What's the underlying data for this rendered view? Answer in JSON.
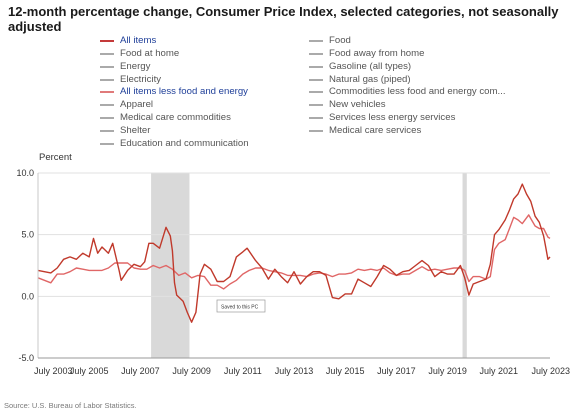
{
  "title": "12-month percentage change, Consumer Price Index, selected categories, not seasonally adjusted",
  "legend": {
    "left": [
      {
        "label": "All items",
        "active": true,
        "color": "#c43a3a"
      },
      {
        "label": "Food at home",
        "active": false,
        "color": "#aaaaaa"
      },
      {
        "label": "Energy",
        "active": false,
        "color": "#aaaaaa"
      },
      {
        "label": "Electricity",
        "active": false,
        "color": "#aaaaaa"
      },
      {
        "label": "All items less food and energy",
        "active": true,
        "color": "#e07a7a"
      },
      {
        "label": "Apparel",
        "active": false,
        "color": "#aaaaaa"
      },
      {
        "label": "Medical care commodities",
        "active": false,
        "color": "#aaaaaa"
      },
      {
        "label": "Shelter",
        "active": false,
        "color": "#aaaaaa"
      },
      {
        "label": "Education and communication",
        "active": false,
        "color": "#aaaaaa"
      }
    ],
    "right": [
      {
        "label": "Food",
        "active": false,
        "color": "#aaaaaa"
      },
      {
        "label": "Food away from home",
        "active": false,
        "color": "#aaaaaa"
      },
      {
        "label": "Gasoline (all types)",
        "active": false,
        "color": "#aaaaaa"
      },
      {
        "label": "Natural gas (piped)",
        "active": false,
        "color": "#aaaaaa"
      },
      {
        "label": "Commodities less food and energy com...",
        "active": false,
        "color": "#aaaaaa"
      },
      {
        "label": "New vehicles",
        "active": false,
        "color": "#aaaaaa"
      },
      {
        "label": "Services less energy services",
        "active": false,
        "color": "#aaaaaa"
      },
      {
        "label": "Medical care services",
        "active": false,
        "color": "#aaaaaa"
      }
    ]
  },
  "tooltip": "Saved to this PC",
  "source": "Source: U.S. Bureau of Labor Statistics.",
  "chart_data": {
    "type": "line",
    "ylabel": "Percent",
    "xlim": [
      "2003-07",
      "2023-07"
    ],
    "ylim": [
      -5.0,
      10.0
    ],
    "y_ticks": [
      "-5.0",
      "0.0",
      "5.0",
      "10.0"
    ],
    "y_tick_values": [
      -5,
      0,
      5,
      10
    ],
    "x_ticks": [
      "July 2003",
      "July 2005",
      "July 2007",
      "July 2009",
      "July 2011",
      "July 2013",
      "July 2015",
      "July 2017",
      "July 2019",
      "July 2021",
      "July 2023"
    ],
    "grid": {
      "horizontal": true,
      "vertical": false
    },
    "recession_shading": [
      {
        "start": "2007-12",
        "end": "2009-06"
      },
      {
        "start": "2020-02",
        "end": "2020-04"
      }
    ],
    "series": [
      {
        "name": "All items",
        "color": "#c0392b",
        "points": [
          [
            "2003-07",
            2.1
          ],
          [
            "2003-10",
            2.0
          ],
          [
            "2004-01",
            1.9
          ],
          [
            "2004-04",
            2.3
          ],
          [
            "2004-07",
            3.0
          ],
          [
            "2004-10",
            3.2
          ],
          [
            "2005-01",
            3.0
          ],
          [
            "2005-04",
            3.5
          ],
          [
            "2005-07",
            3.2
          ],
          [
            "2005-09",
            4.7
          ],
          [
            "2005-11",
            3.5
          ],
          [
            "2006-01",
            4.0
          ],
          [
            "2006-04",
            3.5
          ],
          [
            "2006-06",
            4.3
          ],
          [
            "2006-09",
            2.1
          ],
          [
            "2006-10",
            1.3
          ],
          [
            "2007-01",
            2.1
          ],
          [
            "2007-04",
            2.6
          ],
          [
            "2007-07",
            2.4
          ],
          [
            "2007-09",
            2.8
          ],
          [
            "2007-11",
            4.3
          ],
          [
            "2008-01",
            4.3
          ],
          [
            "2008-04",
            3.9
          ],
          [
            "2008-07",
            5.6
          ],
          [
            "2008-09",
            4.9
          ],
          [
            "2008-10",
            3.7
          ],
          [
            "2008-11",
            1.1
          ],
          [
            "2008-12",
            0.1
          ],
          [
            "2009-03",
            -0.4
          ],
          [
            "2009-05",
            -1.3
          ],
          [
            "2009-07",
            -2.1
          ],
          [
            "2009-09",
            -1.3
          ],
          [
            "2009-11",
            1.8
          ],
          [
            "2010-01",
            2.6
          ],
          [
            "2010-04",
            2.2
          ],
          [
            "2010-07",
            1.2
          ],
          [
            "2010-10",
            1.2
          ],
          [
            "2011-01",
            1.6
          ],
          [
            "2011-04",
            3.2
          ],
          [
            "2011-07",
            3.6
          ],
          [
            "2011-09",
            3.9
          ],
          [
            "2012-01",
            2.9
          ],
          [
            "2012-04",
            2.3
          ],
          [
            "2012-07",
            1.4
          ],
          [
            "2012-10",
            2.2
          ],
          [
            "2013-01",
            1.6
          ],
          [
            "2013-04",
            1.1
          ],
          [
            "2013-07",
            2.0
          ],
          [
            "2013-10",
            1.0
          ],
          [
            "2014-01",
            1.6
          ],
          [
            "2014-04",
            2.0
          ],
          [
            "2014-07",
            2.0
          ],
          [
            "2014-10",
            1.7
          ],
          [
            "2015-01",
            -0.1
          ],
          [
            "2015-04",
            -0.2
          ],
          [
            "2015-07",
            0.2
          ],
          [
            "2015-10",
            0.2
          ],
          [
            "2016-01",
            1.4
          ],
          [
            "2016-04",
            1.1
          ],
          [
            "2016-07",
            0.8
          ],
          [
            "2016-10",
            1.6
          ],
          [
            "2017-01",
            2.5
          ],
          [
            "2017-04",
            2.2
          ],
          [
            "2017-07",
            1.7
          ],
          [
            "2017-10",
            2.0
          ],
          [
            "2018-01",
            2.1
          ],
          [
            "2018-04",
            2.5
          ],
          [
            "2018-07",
            2.9
          ],
          [
            "2018-10",
            2.5
          ],
          [
            "2019-01",
            1.6
          ],
          [
            "2019-04",
            2.0
          ],
          [
            "2019-07",
            1.8
          ],
          [
            "2019-10",
            1.8
          ],
          [
            "2020-01",
            2.5
          ],
          [
            "2020-03",
            1.5
          ],
          [
            "2020-05",
            0.1
          ],
          [
            "2020-07",
            1.0
          ],
          [
            "2020-10",
            1.2
          ],
          [
            "2021-01",
            1.4
          ],
          [
            "2021-03",
            2.6
          ],
          [
            "2021-05",
            5.0
          ],
          [
            "2021-07",
            5.4
          ],
          [
            "2021-10",
            6.2
          ],
          [
            "2021-12",
            7.0
          ],
          [
            "2022-02",
            7.9
          ],
          [
            "2022-04",
            8.3
          ],
          [
            "2022-06",
            9.1
          ],
          [
            "2022-08",
            8.3
          ],
          [
            "2022-10",
            7.7
          ],
          [
            "2022-12",
            6.5
          ],
          [
            "2023-02",
            6.0
          ],
          [
            "2023-04",
            4.9
          ],
          [
            "2023-05",
            4.0
          ],
          [
            "2023-06",
            3.0
          ],
          [
            "2023-07",
            3.2
          ]
        ]
      },
      {
        "name": "All items less food and energy",
        "color": "#e06666",
        "points": [
          [
            "2003-07",
            1.5
          ],
          [
            "2003-10",
            1.3
          ],
          [
            "2004-01",
            1.1
          ],
          [
            "2004-04",
            1.8
          ],
          [
            "2004-07",
            1.8
          ],
          [
            "2004-10",
            2.0
          ],
          [
            "2005-01",
            2.3
          ],
          [
            "2005-04",
            2.2
          ],
          [
            "2005-07",
            2.1
          ],
          [
            "2005-10",
            2.1
          ],
          [
            "2006-01",
            2.1
          ],
          [
            "2006-04",
            2.3
          ],
          [
            "2006-07",
            2.7
          ],
          [
            "2006-10",
            2.7
          ],
          [
            "2007-01",
            2.7
          ],
          [
            "2007-04",
            2.3
          ],
          [
            "2007-07",
            2.2
          ],
          [
            "2007-10",
            2.2
          ],
          [
            "2008-01",
            2.5
          ],
          [
            "2008-04",
            2.3
          ],
          [
            "2008-07",
            2.5
          ],
          [
            "2008-10",
            2.2
          ],
          [
            "2009-01",
            1.7
          ],
          [
            "2009-04",
            1.9
          ],
          [
            "2009-07",
            1.5
          ],
          [
            "2009-10",
            1.7
          ],
          [
            "2010-01",
            1.6
          ],
          [
            "2010-04",
            0.9
          ],
          [
            "2010-07",
            0.9
          ],
          [
            "2010-10",
            0.6
          ],
          [
            "2011-01",
            1.0
          ],
          [
            "2011-04",
            1.3
          ],
          [
            "2011-07",
            1.8
          ],
          [
            "2011-10",
            2.1
          ],
          [
            "2012-01",
            2.3
          ],
          [
            "2012-04",
            2.3
          ],
          [
            "2012-07",
            2.1
          ],
          [
            "2012-10",
            2.0
          ],
          [
            "2013-01",
            1.9
          ],
          [
            "2013-04",
            1.7
          ],
          [
            "2013-07",
            1.7
          ],
          [
            "2013-10",
            1.7
          ],
          [
            "2014-01",
            1.6
          ],
          [
            "2014-04",
            1.8
          ],
          [
            "2014-07",
            1.9
          ],
          [
            "2014-10",
            1.8
          ],
          [
            "2015-01",
            1.6
          ],
          [
            "2015-04",
            1.8
          ],
          [
            "2015-07",
            1.8
          ],
          [
            "2015-10",
            1.9
          ],
          [
            "2016-01",
            2.2
          ],
          [
            "2016-04",
            2.1
          ],
          [
            "2016-07",
            2.2
          ],
          [
            "2016-10",
            2.1
          ],
          [
            "2017-01",
            2.3
          ],
          [
            "2017-04",
            1.9
          ],
          [
            "2017-07",
            1.7
          ],
          [
            "2017-10",
            1.8
          ],
          [
            "2018-01",
            1.8
          ],
          [
            "2018-04",
            2.1
          ],
          [
            "2018-07",
            2.4
          ],
          [
            "2018-10",
            2.1
          ],
          [
            "2019-01",
            2.2
          ],
          [
            "2019-04",
            2.1
          ],
          [
            "2019-07",
            2.2
          ],
          [
            "2019-10",
            2.3
          ],
          [
            "2020-01",
            2.3
          ],
          [
            "2020-03",
            2.1
          ],
          [
            "2020-05",
            1.2
          ],
          [
            "2020-07",
            1.6
          ],
          [
            "2020-10",
            1.6
          ],
          [
            "2021-01",
            1.4
          ],
          [
            "2021-03",
            1.6
          ],
          [
            "2021-05",
            3.8
          ],
          [
            "2021-07",
            4.3
          ],
          [
            "2021-10",
            4.6
          ],
          [
            "2021-12",
            5.5
          ],
          [
            "2022-02",
            6.4
          ],
          [
            "2022-04",
            6.2
          ],
          [
            "2022-06",
            5.9
          ],
          [
            "2022-09",
            6.6
          ],
          [
            "2022-10",
            6.3
          ],
          [
            "2022-12",
            5.7
          ],
          [
            "2023-02",
            5.5
          ],
          [
            "2023-04",
            5.5
          ],
          [
            "2023-06",
            4.8
          ],
          [
            "2023-07",
            4.7
          ]
        ]
      }
    ]
  }
}
